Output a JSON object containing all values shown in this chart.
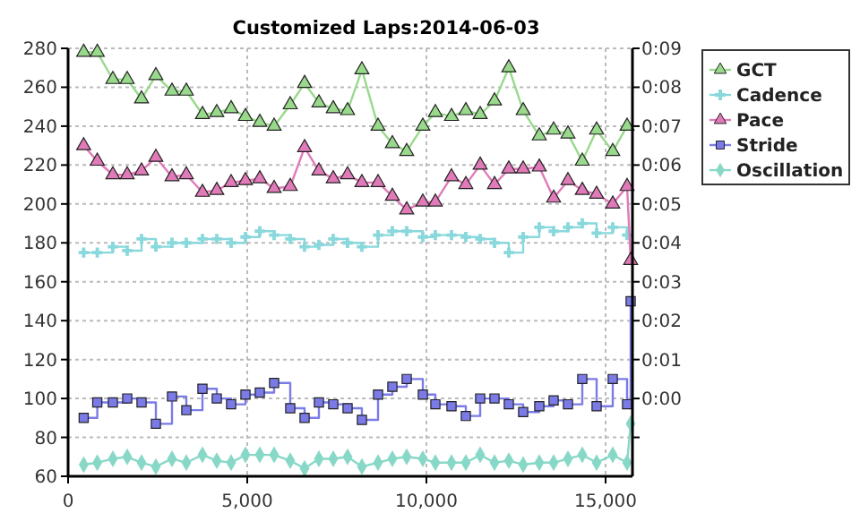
{
  "chart_data": {
    "type": "line",
    "title": "Customized Laps:2014-06-03",
    "x": [
      435,
      815,
      1250,
      1650,
      2050,
      2450,
      2900,
      3300,
      3750,
      4150,
      4550,
      4950,
      5350,
      5750,
      6200,
      6600,
      7000,
      7400,
      7800,
      8200,
      8650,
      9050,
      9450,
      9900,
      10250,
      10700,
      11100,
      11500,
      11900,
      12300,
      12700,
      13150,
      13550,
      13950,
      14350,
      14750,
      15200,
      15600,
      15700
    ],
    "series": [
      {
        "name": "GCT",
        "color": "#99d98c",
        "marker": "triangle",
        "values": [
          278,
          278,
          264,
          264,
          254,
          266,
          258,
          258,
          246,
          247,
          249,
          245,
          242,
          240,
          251,
          262,
          252,
          249,
          248,
          269,
          240,
          231,
          227,
          240,
          247,
          245,
          248,
          246,
          253,
          270,
          248,
          235,
          238,
          236,
          222,
          238,
          227,
          240,
          null
        ]
      },
      {
        "name": "Cadence",
        "color": "#88d8dc",
        "type": "step",
        "marker": "cross",
        "values": [
          175,
          175,
          178,
          176,
          182,
          178,
          180,
          180,
          182,
          182,
          180,
          183,
          186,
          184,
          182,
          178,
          179,
          182,
          180,
          178,
          184,
          186,
          186,
          183,
          184,
          184,
          183,
          182,
          180,
          175,
          183,
          188,
          186,
          188,
          190,
          185,
          188,
          184,
          null
        ]
      },
      {
        "name": "Pace",
        "color": "#e07ab8",
        "axis": "y2",
        "marker": "triangle",
        "values": [
          6.5,
          6.1,
          5.75,
          5.75,
          5.85,
          6.2,
          5.7,
          5.75,
          5.3,
          5.35,
          5.55,
          5.6,
          5.65,
          5.4,
          5.45,
          6.45,
          5.85,
          5.65,
          5.75,
          5.55,
          5.55,
          5.2,
          4.85,
          5.05,
          5.05,
          5.7,
          5.5,
          6.0,
          5.5,
          5.9,
          5.9,
          5.95,
          5.15,
          5.6,
          5.35,
          5.25,
          5.0,
          5.45,
          3.55
        ]
      },
      {
        "name": "Stride",
        "color": "#7b7be8",
        "type": "step",
        "marker": "square",
        "values": [
          90,
          98,
          98,
          100,
          98,
          87,
          101,
          94,
          105,
          100,
          97,
          102,
          103,
          108,
          95,
          90,
          98,
          97,
          95,
          89,
          102,
          106,
          110,
          102,
          97,
          96,
          91,
          100,
          100,
          97,
          93,
          96,
          99,
          97,
          110,
          96,
          110,
          97,
          150
        ]
      },
      {
        "name": "Oscillation",
        "color": "#88d8c8",
        "marker": "diamond",
        "values": [
          66,
          67,
          69,
          70,
          67,
          65,
          69,
          67,
          71,
          68,
          67,
          71,
          71,
          71,
          68,
          64,
          69,
          69,
          70,
          65,
          67,
          69,
          70,
          69,
          67,
          67,
          67,
          71,
          67,
          68,
          66,
          67,
          67,
          69,
          71,
          67,
          71,
          67,
          87
        ]
      }
    ],
    "xlim": [
      0,
      15750
    ],
    "xticks": [
      0,
      {
        "value": 5000,
        "label": "5,000"
      },
      {
        "value": 10000,
        "label": "10,000"
      },
      {
        "value": 15000,
        "label": "15,000"
      }
    ],
    "ylim": [
      60,
      280
    ],
    "yticks": [
      60,
      80,
      100,
      120,
      140,
      160,
      180,
      200,
      220,
      240,
      260,
      280
    ],
    "y2lim": [
      -2,
      9
    ],
    "y2ticks": [
      {
        "value": -1,
        "label": null
      },
      {
        "value": 0,
        "label": "0:00"
      },
      {
        "value": 1,
        "label": "0:01"
      },
      {
        "value": 2,
        "label": "0:02"
      },
      {
        "value": 3,
        "label": "0:03"
      },
      {
        "value": 4,
        "label": "0:04"
      },
      {
        "value": 5,
        "label": "0:05"
      },
      {
        "value": 6,
        "label": "0:06"
      },
      {
        "value": 7,
        "label": "0:07"
      },
      {
        "value": 8,
        "label": "0:08"
      },
      {
        "value": 9,
        "label": "0:09"
      }
    ],
    "grid": true,
    "legend": "top right"
  }
}
